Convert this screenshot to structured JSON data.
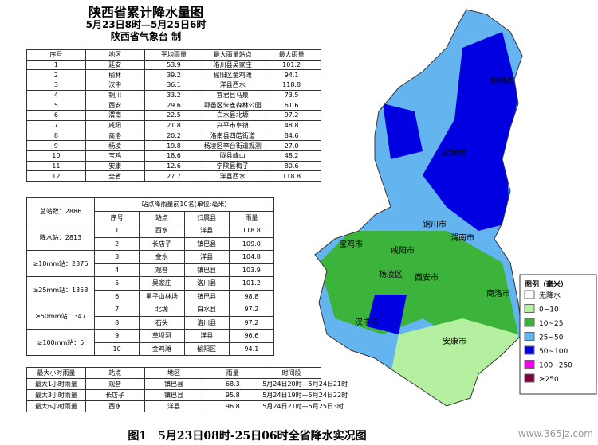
{
  "header": {
    "title": "陕西省累计降水量图",
    "period": "5月23日8时—5月25日6时",
    "issuer": "陕西省气象台 制"
  },
  "region_table": {
    "headers": [
      "序号",
      "地区",
      "平均雨量",
      "最大雨量站点",
      "最大雨量"
    ],
    "rows": [
      [
        "1",
        "延安",
        "53.9",
        "洛川县吴家庄",
        "101.2"
      ],
      [
        "2",
        "榆林",
        "39.2",
        "榆阳区金鸡滩",
        "94.1"
      ],
      [
        "3",
        "汉中",
        "36.1",
        "洋县西水",
        "118.8"
      ],
      [
        "4",
        "铜川",
        "33.2",
        "宜君县马泉",
        "73.5"
      ],
      [
        "5",
        "西安",
        "29.6",
        "鄠邑区朱雀森林公园",
        "61.6"
      ],
      [
        "6",
        "渭南",
        "22.5",
        "白水县北塬",
        "97.2"
      ],
      [
        "7",
        "咸阳",
        "21.8",
        "兴平市阜镇",
        "48.8"
      ],
      [
        "8",
        "商洛",
        "20.2",
        "洛南县四皓街道",
        "84.6"
      ],
      [
        "9",
        "杨凌",
        "19.8",
        "杨凌区李台街道观测",
        "27.0"
      ],
      [
        "10",
        "宝鸡",
        "18.6",
        "陇县峰山",
        "48.2"
      ],
      [
        "11",
        "安康",
        "12.6",
        "宁陕县梅子",
        "80.6"
      ],
      [
        "12",
        "全省",
        "27.7",
        "洋县西水",
        "118.8"
      ]
    ]
  },
  "station_stats": [
    "总站数：2886",
    "降水站：2813",
    "≥10mm站：2376",
    "≥25mm站：1358",
    "≥50mm站：347",
    "≥100mm站：5"
  ],
  "top10_table": {
    "title": "站点降雨量前10名(单位:毫米)",
    "headers": [
      "序号",
      "站点",
      "归属县",
      "雨量"
    ],
    "rows": [
      [
        "1",
        "西水",
        "洋县",
        "118.8"
      ],
      [
        "2",
        "长店子",
        "镇巴县",
        "109.0"
      ],
      [
        "3",
        "金水",
        "洋县",
        "104.8"
      ],
      [
        "4",
        "观音",
        "镇巴县",
        "103.9"
      ],
      [
        "5",
        "吴家庄",
        "洛川县",
        "101.2"
      ],
      [
        "6",
        "星子山林场",
        "镇巴县",
        "98.8"
      ],
      [
        "7",
        "北塬",
        "白水县",
        "97.2"
      ],
      [
        "8",
        "石头",
        "洛川县",
        "97.2"
      ],
      [
        "9",
        "草坝河",
        "洋县",
        "96.6"
      ],
      [
        "10",
        "金鸡滩",
        "榆阳区",
        "94.1"
      ]
    ]
  },
  "hourly_table": {
    "headers": [
      "最大小时雨量",
      "站点",
      "地区",
      "雨量",
      "时间段"
    ],
    "rows": [
      [
        "最大1小时雨量",
        "观音",
        "镇巴县",
        "68.3",
        "5月24日20时—5月24日21时"
      ],
      [
        "最大3小时雨量",
        "长店子",
        "镇巴县",
        "95.8",
        "5月24日19时—5月24日22时"
      ],
      [
        "最大6小时雨量",
        "西水",
        "洋县",
        "96.8",
        "5月24日21时—5月25日3时"
      ]
    ]
  },
  "map": {
    "cities": [
      "榆林市",
      "延安市",
      "铜川市",
      "渭南市",
      "宝鸡市",
      "咸阳市",
      "杨凌区",
      "西安市",
      "汉中市",
      "商洛市",
      "安康市"
    ]
  },
  "legend": {
    "title": "图例（毫米）",
    "items": [
      {
        "label": "无降水",
        "color": "#ffffff"
      },
      {
        "label": "0~10",
        "color": "#b4f0a0"
      },
      {
        "label": "10~25",
        "color": "#3cb43c"
      },
      {
        "label": "25~50",
        "color": "#64b4f0"
      },
      {
        "label": "50~100",
        "color": "#0000e0"
      },
      {
        "label": "100~250",
        "color": "#f000f0"
      },
      {
        "label": "≥250",
        "color": "#800040"
      }
    ]
  },
  "caption": "图1　5月23日08时-25日06时全省降水实况图",
  "watermark": "www.365jz.com"
}
